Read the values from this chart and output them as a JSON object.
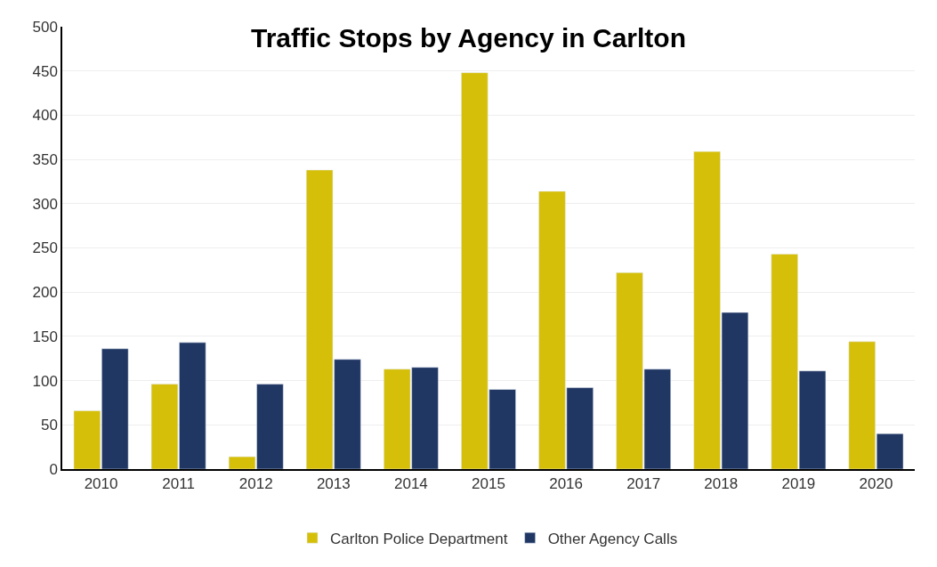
{
  "chart_data": {
    "type": "bar",
    "title": "Traffic Stops by Agency in Carlton",
    "categories": [
      "2010",
      "2011",
      "2012",
      "2013",
      "2014",
      "2015",
      "2016",
      "2017",
      "2018",
      "2019",
      "2020"
    ],
    "series": [
      {
        "name": "Carlton Police Department",
        "color": "#d6bf08",
        "values": [
          66,
          96,
          14,
          338,
          113,
          448,
          314,
          222,
          359,
          243,
          144
        ]
      },
      {
        "name": "Other Agency Calls",
        "color": "#213763",
        "values": [
          136,
          143,
          96,
          124,
          115,
          90,
          92,
          113,
          177,
          111,
          40
        ]
      }
    ],
    "ylim": [
      0,
      500
    ],
    "yticks": [
      0,
      50,
      100,
      150,
      200,
      250,
      300,
      350,
      400,
      450,
      500
    ],
    "grid": "y",
    "legend": "bottom"
  }
}
